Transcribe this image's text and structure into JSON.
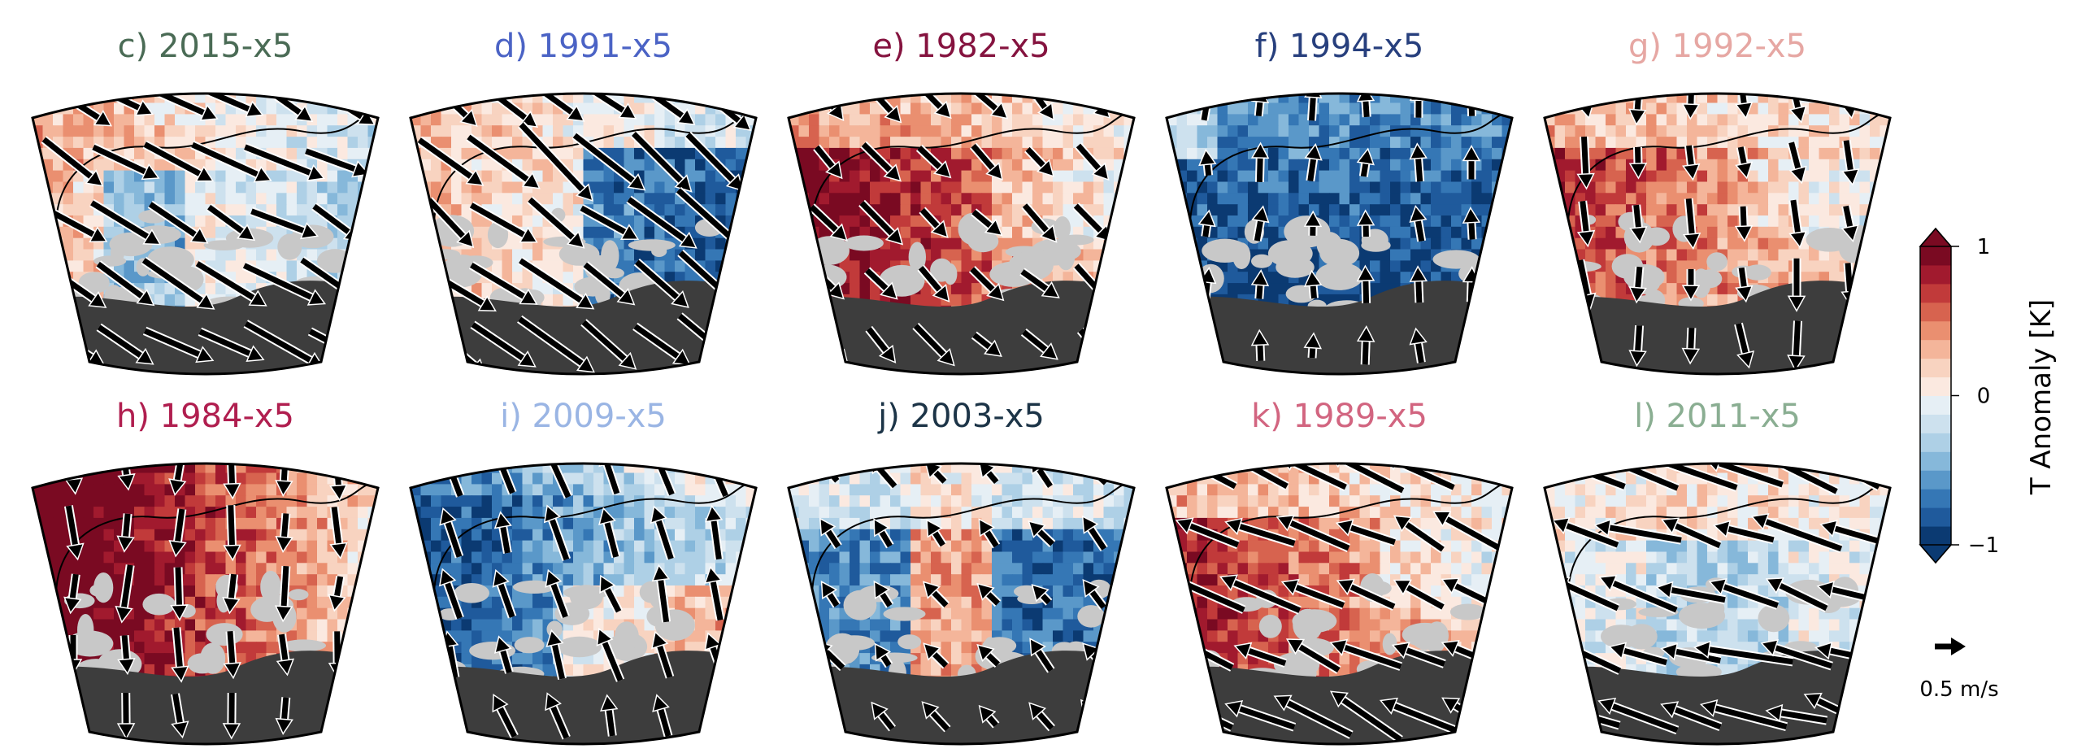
{
  "chart_data": {
    "type": "heatmap",
    "panels": [
      {
        "id": "c",
        "title": "c) 2015-x5",
        "title_color": "#4a6b55",
        "pattern": "w",
        "strength": 0.35,
        "wind_u": 0.8,
        "wind_v": -0.45,
        "arrow_scale": 1.6
      },
      {
        "id": "d",
        "title": "d) 1991-x5",
        "title_color": "#4b63c5",
        "pattern": "ne",
        "strength": 0.45,
        "wind_u": 0.7,
        "wind_v": -0.55,
        "arrow_scale": 1.8
      },
      {
        "id": "e",
        "title": "e) 1982-x5",
        "title_color": "#85133f",
        "pattern": "sw",
        "strength": 0.75,
        "wind_u": 0.45,
        "wind_v": -0.45,
        "arrow_scale": 1.0
      },
      {
        "id": "f",
        "title": "f) 1994-x5",
        "title_color": "#273f7d",
        "pattern": "cold",
        "strength": 0.9,
        "wind_u": 0.0,
        "wind_v": 0.55,
        "arrow_scale": 0.7
      },
      {
        "id": "g",
        "title": "g) 1992-x5",
        "title_color": "#e6a7a3",
        "pattern": "sw",
        "strength": 0.55,
        "wind_u": 0.05,
        "wind_v": -0.6,
        "arrow_scale": 0.9
      },
      {
        "id": "h",
        "title": "h) 1984-x5",
        "title_color": "#b01e4f",
        "pattern": "warm",
        "strength": 0.85,
        "wind_u": 0.0,
        "wind_v": -0.6,
        "arrow_scale": 1.0
      },
      {
        "id": "i",
        "title": "i) 2009-x5",
        "title_color": "#9ab5e4",
        "pattern": "w_cold",
        "strength": 0.85,
        "wind_u": -0.2,
        "wind_v": 0.65,
        "arrow_scale": 1.0
      },
      {
        "id": "j",
        "title": "j) 2003-x5",
        "title_color": "#1c3447",
        "pattern": "mix",
        "strength": 0.8,
        "wind_u": -0.25,
        "wind_v": 0.3,
        "arrow_scale": 0.7
      },
      {
        "id": "k",
        "title": "k) 1989-x5",
        "title_color": "#d26580",
        "pattern": "sw",
        "strength": 0.6,
        "wind_u": -0.7,
        "wind_v": 0.35,
        "arrow_scale": 1.5
      },
      {
        "id": "l",
        "title": "l) 2011-x5",
        "title_color": "#8aae92",
        "pattern": "s_cold",
        "strength": 0.45,
        "wind_u": -0.8,
        "wind_v": 0.25,
        "arrow_scale": 1.7
      }
    ],
    "colorbar": {
      "label": "T Anomaly [K]",
      "ticks": [
        {
          "value": 1,
          "label": "1"
        },
        {
          "value": 0,
          "label": "0"
        },
        {
          "value": -1,
          "label": "−1"
        }
      ],
      "vmin": -1,
      "vmax": 1,
      "levels": 16,
      "colormap": "RdBu_r",
      "extend": "both"
    },
    "reference_vector": {
      "value": 0.5,
      "label": "0.5 m/s"
    },
    "colors": {
      "masked_land": "#c8c8c8",
      "lower_region": "#3d3d3d",
      "coast": "#000000",
      "arrow": "#000000"
    }
  }
}
